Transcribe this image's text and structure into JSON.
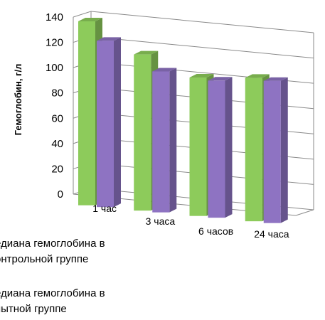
{
  "chart_data": {
    "type": "bar",
    "categories": [
      "1 час",
      "3 часа",
      "6 часов",
      "24 часа"
    ],
    "series": [
      {
        "name": "Медиана гемоглобина в контрольной группе",
        "values": [
          137,
          115,
          101,
          105
        ],
        "color": "#8DCB5B"
      },
      {
        "name": "Медиана гемоглобина в опытной группе",
        "values": [
          123,
          103,
          100,
          104
        ],
        "color": "#8E73C2"
      }
    ],
    "ylabel": "Гемоглобин, г/л",
    "ylim": [
      0,
      140
    ],
    "yticks": [
      "0",
      "20",
      "40",
      "60",
      "80",
      "100",
      "120",
      "140"
    ],
    "grid": true,
    "legend_position": "bottom-left"
  },
  "legend": {
    "control": [
      "едиана гемоглобина в",
      "онтрольной группе"
    ],
    "experimental": [
      "едиана гемоглобина  в",
      "пытной группе"
    ]
  }
}
